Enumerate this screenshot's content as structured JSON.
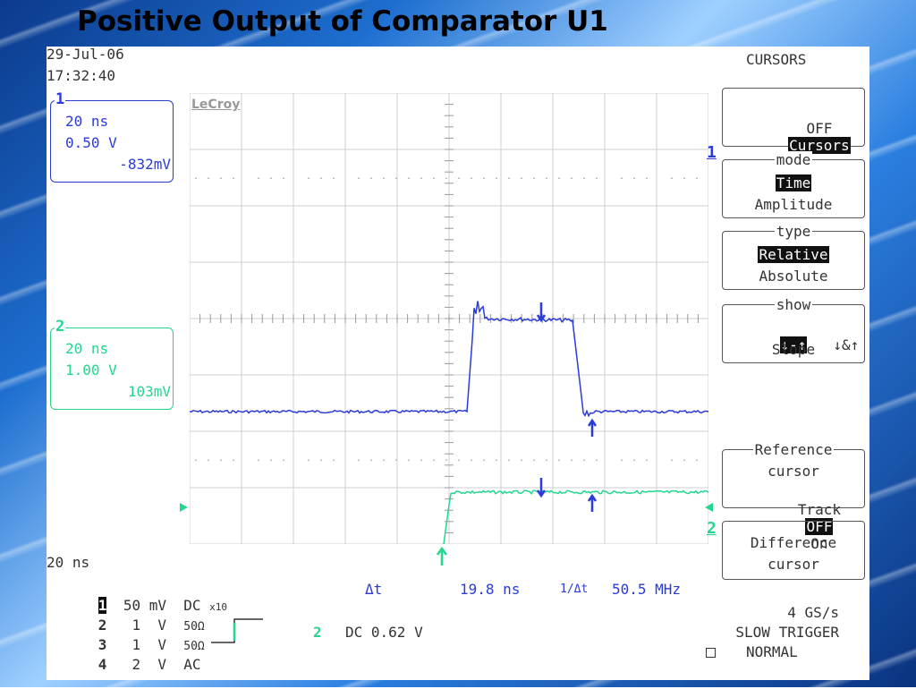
{
  "slide_title": "Positive Output of Comparator U1",
  "datetime": {
    "date": "29-Jul-06",
    "time": "17:32:40"
  },
  "brand": "LeCroy",
  "channel1_box": {
    "num": "1",
    "timebase": "20 ns",
    "volts": "0.50 V",
    "offset": "-832mV",
    "color": "#2a3bd8"
  },
  "channel2_box": {
    "num": "2",
    "timebase": "20 ns",
    "volts": "1.00 V",
    "offset": "103mV",
    "color": "#23d78e"
  },
  "menu": {
    "title": "CURSORS",
    "cursors_toggle": {
      "off": "OFF",
      "on": "Cursors"
    },
    "mode": {
      "header": "mode",
      "options": [
        "Time",
        "Amplitude"
      ],
      "selected": "Time"
    },
    "type": {
      "header": "type",
      "options": [
        "Relative",
        "Absolute"
      ],
      "selected": "Relative"
    },
    "show": {
      "header": "show",
      "opt1": "↓-↑",
      "opt2": "↓&↑",
      "opt3": "Slope"
    },
    "reference": {
      "header": "Reference",
      "line1": "cursor",
      "track": "Track",
      "off": "OFF",
      "on": "On"
    },
    "difference": {
      "line1": "Difference",
      "line2": "cursor"
    }
  },
  "side_markers": {
    "ch1": "1",
    "ch2": "2"
  },
  "bottom": {
    "timebase": "20 ns",
    "channels": [
      {
        "num": "1",
        "scale": "50",
        "unit": "mV",
        "coupling": "DC",
        "extra": "x10"
      },
      {
        "num": "2",
        "scale": "1",
        "unit": "V",
        "coupling": "50Ω",
        "extra": ""
      },
      {
        "num": "3",
        "scale": "1",
        "unit": "V",
        "coupling": "50Ω",
        "extra": ""
      },
      {
        "num": "4",
        "scale": "2",
        "unit": "V",
        "coupling": "AC",
        "extra": ""
      }
    ],
    "delta_t_label": "Δt",
    "delta_t_value": "19.8 ns",
    "inv_delta_label": "1/Δt",
    "inv_delta_value": "50.5 MHz",
    "trigger_channel": "2",
    "trigger_level": "DC 0.62 V",
    "sample_rate": "4 GS/s",
    "trigger_mode": "SLOW TRIGGER",
    "trigger_state": "NORMAL"
  }
}
